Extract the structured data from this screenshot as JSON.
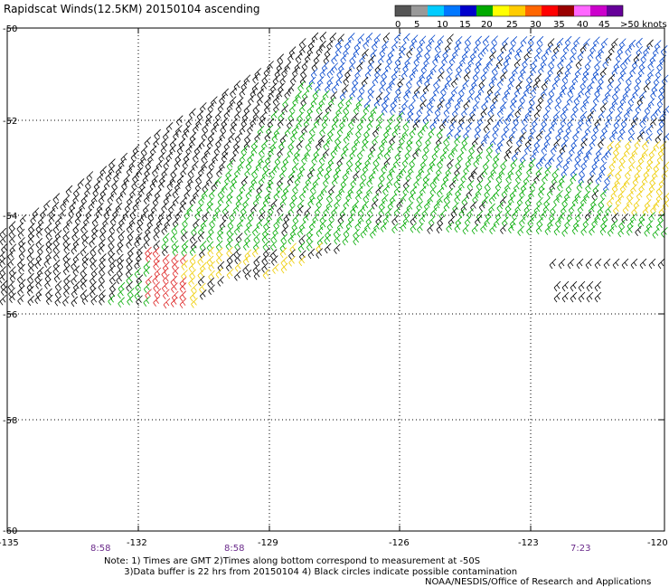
{
  "header": {
    "title": "Rapidscat Winds(12.5KM) 20150104 ascending"
  },
  "legend": {
    "labels": [
      "0",
      "5",
      "10",
      "15",
      "20",
      "25",
      "30",
      "35",
      "40",
      "45",
      ">50 knots"
    ],
    "colors": [
      "#555555",
      "#999999",
      "#00ccff",
      "#0077ff",
      "#0000cc",
      "#00aa00",
      "#ffff00",
      "#ffcc00",
      "#ff6600",
      "#ff0000",
      "#990000",
      "#ff66ff",
      "#cc00cc",
      "#660099"
    ]
  },
  "map": {
    "lat_labels": [
      "-50",
      "-52",
      "-54",
      "-56",
      "-58",
      "-60"
    ],
    "lon_labels": [
      "-135",
      "-132",
      "-129",
      "-126",
      "-123",
      "-120"
    ],
    "time_labels": [
      "8:58",
      "8:58",
      "7:23"
    ]
  },
  "footer": {
    "note_line1": "Note: 1) Times are GMT 2)Times along bottom correspond to measurement at -50S",
    "note_line2": "3)Data buffer is 22 hrs from 20150104 4) Black circles indicate possible contamination",
    "credit": "NOAA/NESDIS/Office of Research and Applications"
  }
}
